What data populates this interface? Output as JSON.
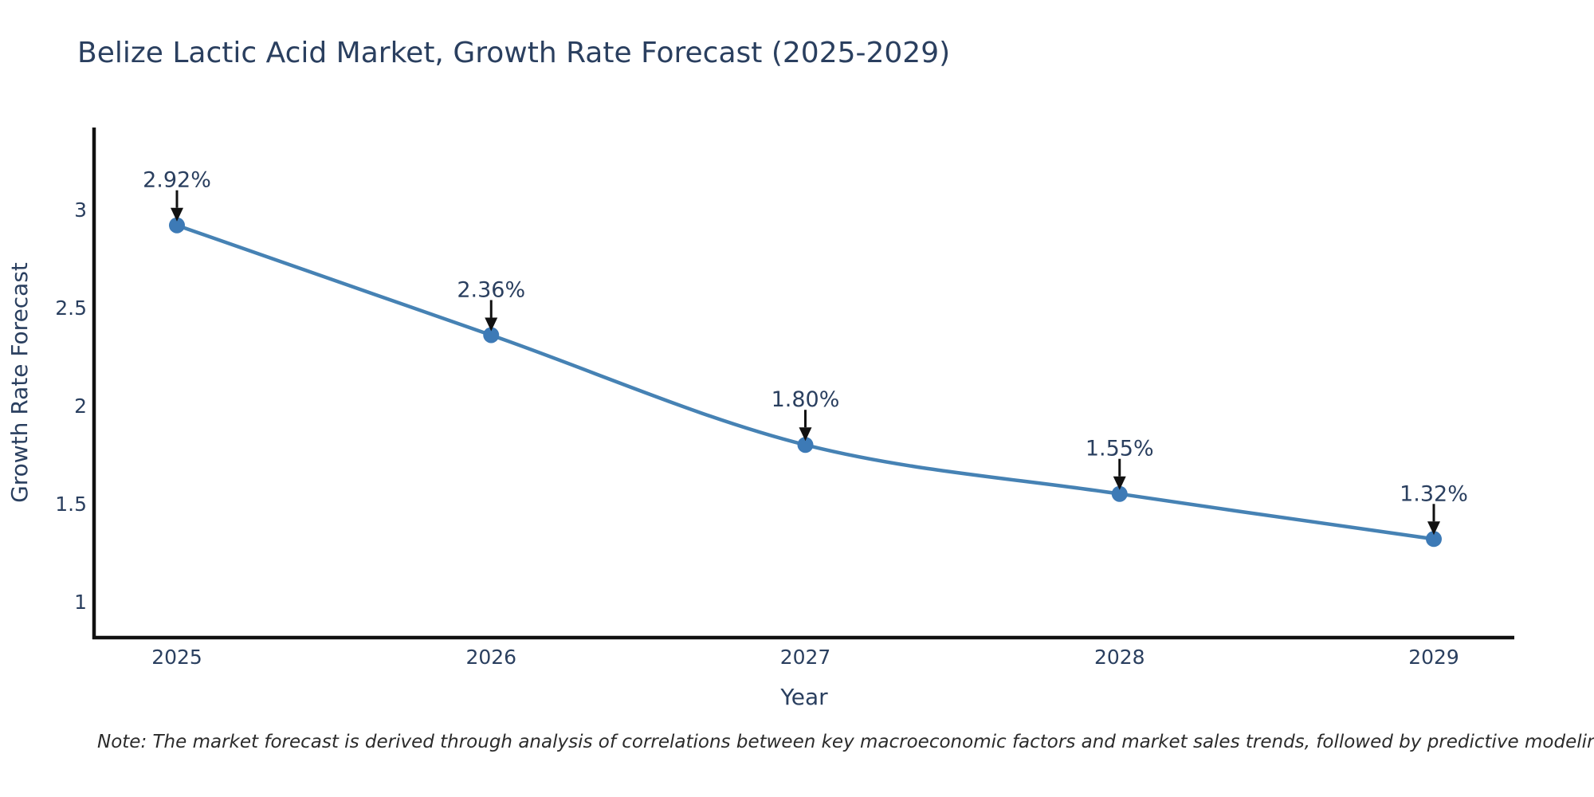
{
  "title": {
    "text": "Belize Lactic Acid Market, Growth Rate Forecast (2025-2029)",
    "color": "#2a3f5f"
  },
  "note": {
    "text": "Note: The market forecast is derived through analysis of correlations between key macroeconomic factors and market sales trends, followed by predictive modeling to project future sales"
  },
  "chart_data": {
    "type": "line",
    "title": "Belize Lactic Acid Market, Growth Rate Forecast (2025-2029)",
    "x": [
      "2025",
      "2026",
      "2027",
      "2028",
      "2029"
    ],
    "series": [
      {
        "name": "Growth Rate Forecast",
        "values": [
          2.92,
          2.36,
          1.8,
          1.55,
          1.32
        ]
      }
    ],
    "point_labels": [
      "2.92%",
      "2.36%",
      "1.80%",
      "1.55%",
      "1.32%"
    ],
    "xlabel": "Year",
    "ylabel": "Growth Rate Forecast",
    "yticks": [
      1,
      1.5,
      2,
      2.5,
      3
    ],
    "ylim": [
      0.817,
      3.419
    ],
    "grid": false,
    "legend_position": "none",
    "line_color": "#4682b4",
    "marker_color": "#3d7ab6",
    "axis_color": "#111111",
    "tick_label_color": "#2a3f5f",
    "annotation_text_color": "#2a3f5f",
    "annotation_arrow_color": "#111111"
  }
}
